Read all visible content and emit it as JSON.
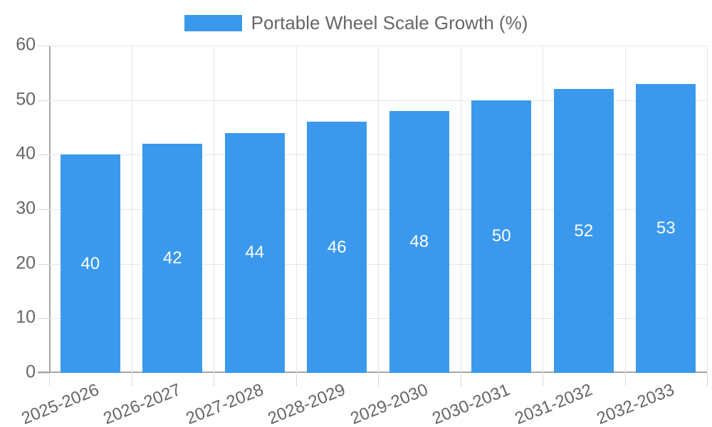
{
  "title": "Portable Wheel Scale Growth (%)",
  "legend": {
    "label": "Portable Wheel Scale Growth (%)",
    "swatch_color": "#3a99ec"
  },
  "colors": {
    "bar": "#3a99ec",
    "grid": "#e6e6e6",
    "axis": "#a6a6a6",
    "tick_label": "#666666",
    "bar_value_label": "#ffffff",
    "background": "#ffffff"
  },
  "chart_data": {
    "type": "bar",
    "categories": [
      "2025-2026",
      "2026-2027",
      "2027-2028",
      "2028-2029",
      "2029-2030",
      "2030-2031",
      "2031-2032",
      "2032-2033"
    ],
    "values": [
      40,
      42,
      44,
      46,
      48,
      50,
      52,
      53
    ],
    "title": "Portable Wheel Scale Growth (%)",
    "xlabel": "",
    "ylabel": "",
    "ylim": [
      0,
      60
    ],
    "yticks": [
      0,
      10,
      20,
      30,
      40,
      50,
      60
    ],
    "grid": true,
    "legend_position": "top-center",
    "value_labels": "inside-center",
    "x_tick_rotation_deg": -22
  }
}
